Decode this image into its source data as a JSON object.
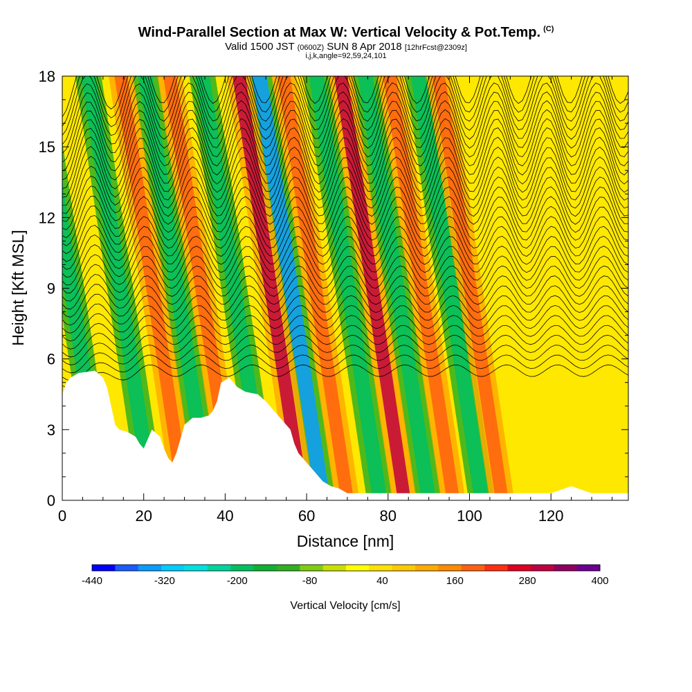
{
  "header": {
    "title": "Wind-Parallel Section at Max W: Vertical Velocity & Pot.Temp.",
    "copyright": "(C)",
    "valid_prefix": "Valid 1500 JST",
    "valid_z": "(0600Z)",
    "valid_date": "SUN 8 Apr 2018",
    "forecast": "[12hrFcst@2309z]",
    "ijk": "i,j,k,angle=92,59,24,101"
  },
  "chart_data": {
    "type": "heatmap",
    "xlabel": "Distance [nm]",
    "ylabel": "Height [Kft MSL]",
    "xlim": [
      0,
      139
    ],
    "ylim": [
      0,
      18
    ],
    "x_ticks": [
      0,
      20,
      40,
      60,
      80,
      100,
      120
    ],
    "y_ticks": [
      0,
      3,
      6,
      9,
      12,
      15,
      18
    ],
    "colorbar": {
      "title": "Vertical Velocity [cm/s]",
      "min": -440,
      "max": 400,
      "labels": [
        "-440",
        "-320",
        "-200",
        "-80",
        "40",
        "160",
        "280",
        "400"
      ],
      "colors": [
        "#0000ff",
        "#1a5cff",
        "#0a9cff",
        "#00ccff",
        "#00e0e0",
        "#00d49c",
        "#00c060",
        "#10b030",
        "#30b020",
        "#80cc10",
        "#c8e000",
        "#ffff00",
        "#ffe000",
        "#ffc800",
        "#ffaa00",
        "#ff8a00",
        "#ff6010",
        "#ff3010",
        "#e00020",
        "#c00040",
        "#900060",
        "#6a0090"
      ]
    },
    "terrain_profile_kft": [
      [
        0,
        4.5
      ],
      [
        1,
        5
      ],
      [
        2,
        5.2
      ],
      [
        4,
        5.4
      ],
      [
        8,
        5.5
      ],
      [
        10,
        5.2
      ],
      [
        11,
        4.8
      ],
      [
        12,
        4
      ],
      [
        13,
        3.2
      ],
      [
        14,
        3
      ],
      [
        16,
        2.9
      ],
      [
        18,
        2.7
      ],
      [
        19,
        2.4
      ],
      [
        20,
        2.2
      ],
      [
        21,
        2.6
      ],
      [
        22,
        3
      ],
      [
        24,
        2.7
      ],
      [
        25,
        2.2
      ],
      [
        26,
        1.8
      ],
      [
        27,
        1.6
      ],
      [
        28,
        2
      ],
      [
        29,
        2.6
      ],
      [
        30,
        3.2
      ],
      [
        32,
        3.5
      ],
      [
        34,
        3.5
      ],
      [
        36,
        3.6
      ],
      [
        37,
        3.8
      ],
      [
        38,
        4.2
      ],
      [
        39,
        5
      ],
      [
        41,
        5.2
      ],
      [
        43,
        4.8
      ],
      [
        45,
        4.6
      ],
      [
        48,
        4.5
      ],
      [
        50,
        4.2
      ],
      [
        52,
        3.8
      ],
      [
        54,
        3.4
      ],
      [
        56,
        3
      ],
      [
        57,
        2.4
      ],
      [
        58,
        2
      ],
      [
        60,
        1.6
      ],
      [
        62,
        1.2
      ],
      [
        64,
        0.8
      ],
      [
        66,
        0.6
      ],
      [
        68,
        0.5
      ],
      [
        70,
        0.3
      ],
      [
        72,
        0.3
      ],
      [
        80,
        0.3
      ],
      [
        90,
        0.3
      ],
      [
        120,
        0.3
      ],
      [
        125,
        0.6
      ],
      [
        130,
        0.3
      ],
      [
        139,
        0.3
      ]
    ],
    "updraft_band_centers_nm": [
      30,
      42,
      59,
      70,
      84,
      96,
      108
    ],
    "downdraft_band_centers_nm": [
      10,
      22,
      36,
      50,
      64,
      78,
      90,
      103
    ]
  },
  "colors": {
    "background_field": "#ffe800",
    "terrain": "#ffffff",
    "contour": "#000000"
  }
}
